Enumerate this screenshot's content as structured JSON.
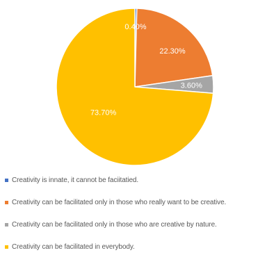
{
  "chart_data": {
    "type": "pie",
    "categories": [
      "Creativity is innate, it cannot be faciitatied.",
      "Creativity can be facilitated only in those who really want to be creative.",
      "Creativity can be facilitated only in those who are creative by nature.",
      "Creativity can be facilitated in everybody."
    ],
    "values": [
      0.4,
      22.3,
      3.6,
      73.7
    ],
    "data_labels": [
      "0.40%",
      "22.30%",
      "3.60%",
      "73.70%"
    ],
    "colors": [
      "#4472c4",
      "#ed7d31",
      "#a5a5a5",
      "#ffc000"
    ],
    "legend_position": "bottom",
    "title": ""
  }
}
